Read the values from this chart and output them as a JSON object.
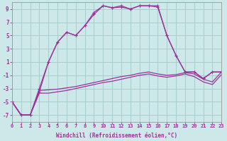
{
  "xlabel": "Windchill (Refroidissement éolien,°C)",
  "background_color": "#cce8e8",
  "grid_color": "#aacccc",
  "line_color": "#993399",
  "ylim": [
    -8,
    10
  ],
  "yticks": [
    -7,
    -5,
    -3,
    -1,
    1,
    3,
    5,
    7,
    9
  ],
  "xlim": [
    0,
    23
  ],
  "xticks": [
    0,
    1,
    2,
    3,
    4,
    5,
    6,
    7,
    8,
    9,
    10,
    11,
    12,
    13,
    14,
    15,
    16,
    17,
    18,
    19,
    20,
    21,
    22,
    23
  ],
  "series_upper1": [
    -5,
    -7,
    -7,
    -3.5,
    1.0,
    4.0,
    5.5,
    5.0,
    6.5,
    8.5,
    9.5,
    9.2,
    9.5,
    9.0,
    9.5,
    9.5,
    9.5,
    5.0,
    2.0,
    -0.5,
    -0.5,
    -1.5,
    -0.5,
    -0.5
  ],
  "series_upper2": [
    -5,
    -7,
    -7,
    -3.0,
    1.0,
    4.0,
    5.5,
    5.0,
    6.5,
    8.2,
    9.5,
    9.2,
    9.3,
    9.0,
    9.5,
    9.5,
    9.3,
    5.0,
    2.0,
    -0.5,
    -0.5,
    -1.5,
    -0.5,
    -0.5
  ],
  "series_lower1": [
    -5,
    -7,
    -7,
    -3.3,
    -3.2,
    -3.1,
    -2.9,
    -2.7,
    -2.4,
    -2.1,
    -1.8,
    -1.5,
    -1.2,
    -1.0,
    -0.7,
    -0.5,
    -0.8,
    -1.0,
    -0.9,
    -0.6,
    -0.8,
    -1.6,
    -2.0,
    -0.5
  ],
  "series_lower2": [
    -5,
    -7,
    -7,
    -3.7,
    -3.7,
    -3.5,
    -3.3,
    -3.0,
    -2.7,
    -2.4,
    -2.1,
    -1.9,
    -1.6,
    -1.3,
    -1.0,
    -0.8,
    -1.1,
    -1.3,
    -1.1,
    -0.8,
    -1.2,
    -2.0,
    -2.4,
    -0.9
  ],
  "tick_fontsize": 5.0,
  "xlabel_fontsize": 5.5
}
